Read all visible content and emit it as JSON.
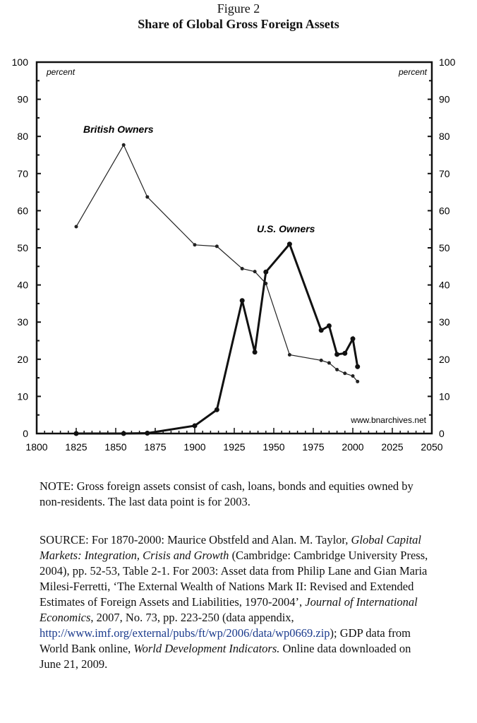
{
  "figure_label": "Figure 2",
  "chart_data": {
    "type": "line",
    "title": "Share of Global Gross Foreign Assets",
    "ylabel_left": "percent",
    "ylabel_right": "percent",
    "xlim": [
      1800,
      2050
    ],
    "ylim": [
      0,
      100
    ],
    "x_ticks": [
      1800,
      1825,
      1850,
      1875,
      1900,
      1925,
      1950,
      1975,
      2000,
      2025,
      2050
    ],
    "y_ticks": [
      0,
      10,
      20,
      30,
      40,
      50,
      60,
      70,
      80,
      90,
      100
    ],
    "grid": false,
    "watermark": "www.bnarchives.net",
    "series": [
      {
        "name": "British Owners",
        "x": [
          1825,
          1855,
          1870,
          1900,
          1914,
          1930,
          1938,
          1945,
          1960,
          1980,
          1985,
          1990,
          1995,
          2000,
          2003
        ],
        "y": [
          55.7,
          77.7,
          63.7,
          50.8,
          50.4,
          44.4,
          43.6,
          40.4,
          21.2,
          19.7,
          19.0,
          17.2,
          16.2,
          15.5,
          14.0
        ],
        "color": "#222",
        "weight": "thin"
      },
      {
        "name": "U.S. Owners",
        "x": [
          1825,
          1855,
          1870,
          1900,
          1914,
          1930,
          1938,
          1945,
          1960,
          1980,
          1985,
          1990,
          1995,
          2000,
          2003
        ],
        "y": [
          0,
          0,
          0.1,
          2.1,
          6.4,
          35.8,
          21.9,
          43.5,
          51.0,
          27.8,
          29.0,
          21.3,
          21.6,
          25.5,
          18.0
        ],
        "color": "#111",
        "weight": "thick"
      }
    ]
  },
  "note": {
    "label": "NOTE:",
    "text": " Gross foreign assets consist of cash, loans, bonds and equities owned by non-residents. The last data point is for 2003."
  },
  "source": {
    "label": "SOURCE:",
    "t1": " For 1870-2000: Maurice Obstfeld and Alan. M. Taylor, ",
    "i1": "Global Capital Markets: Integration, Crisis and Growth",
    "t2": " (Cambridge: Cambridge University Press, 2004), pp. 52-53, Table 2-1. For 2003: Asset data from Philip Lane and Gian Maria Milesi-Ferretti, ‘The External Wealth of Nations Mark II: Revised and Extended Estimates of Foreign Assets and Liabilities, 1970-2004’, ",
    "i2": "Journal of International Economics",
    "t3": ", 2007, No. 73, pp. 223-250 (data appendix, ",
    "link": "http://www.imf.org/external/pubs/ft/wp/2006/data/wp0669.zip",
    "t4": "); GDP data from World Bank online, ",
    "i3": "World Development Indicators.",
    "t5": " Online data downloaded on June 21, 2009."
  }
}
